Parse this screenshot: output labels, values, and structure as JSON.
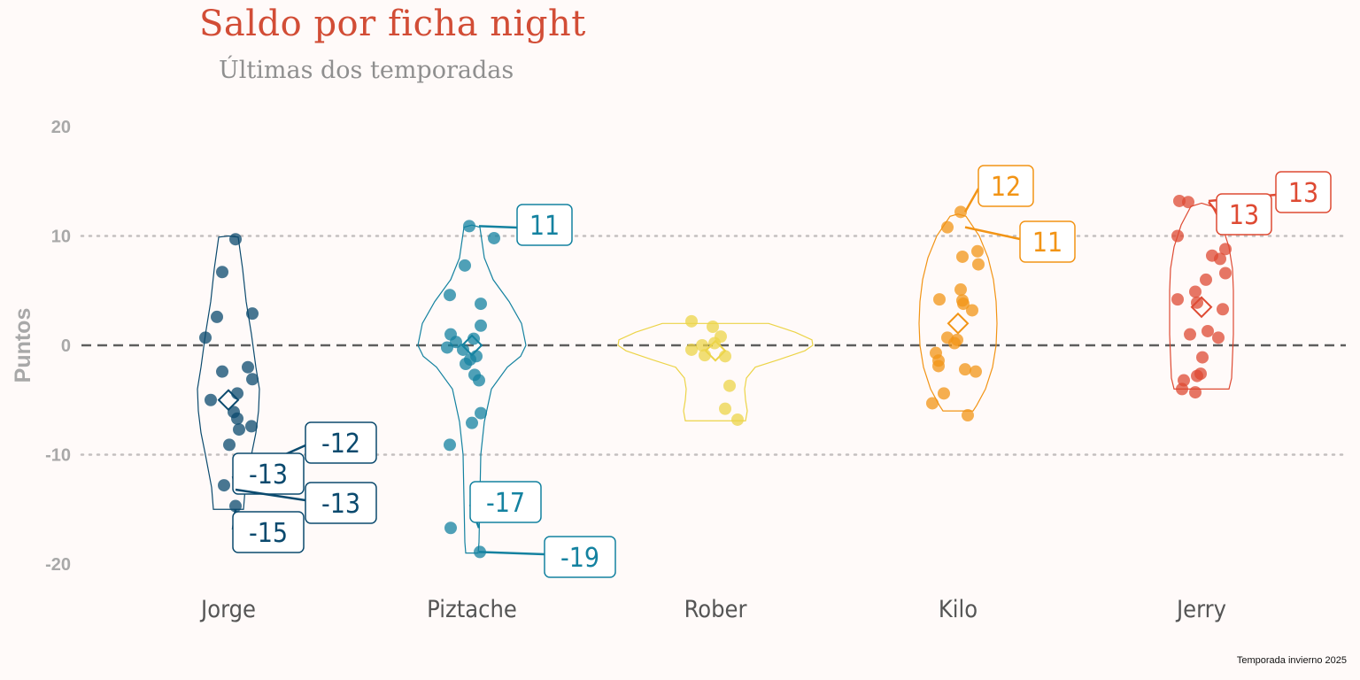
{
  "title": "Saldo por ficha night",
  "subtitle": "Últimas dos temporadas",
  "caption": "Temporada invierno 2025",
  "chart_data": {
    "type": "violin",
    "ylabel": "Puntos",
    "ylim": [
      -20,
      20
    ],
    "yticks": [
      20,
      10,
      0,
      -10,
      -20
    ],
    "reference_line": 0,
    "grid": "dotted at y=10 and y=-10",
    "categories": [
      "Jorge",
      "Piztache",
      "Rober",
      "Kilo",
      "Jerry"
    ],
    "series": [
      {
        "name": "Jorge",
        "color": "#0b4a6e",
        "mean": -5,
        "range": [
          -15,
          10
        ],
        "points": [
          9.7,
          6.7,
          2.9,
          2.6,
          0.7,
          -2.0,
          -2.4,
          -3.1,
          -4.4,
          -5.0,
          -6.1,
          -6.7,
          -7.4,
          -7.7,
          -9.1,
          -12.0,
          -12.8,
          -14.7
        ],
        "labels": [
          {
            "value": "-12",
            "y": -12.0
          },
          {
            "value": "-13",
            "y": -13.0
          },
          {
            "value": "-13",
            "y": -13.2
          },
          {
            "value": "-15",
            "y": -15.0
          }
        ]
      },
      {
        "name": "Piztache",
        "color": "#1482a0",
        "mean": 0,
        "range": [
          -19,
          11
        ],
        "points": [
          10.9,
          9.8,
          7.3,
          4.6,
          3.8,
          1.8,
          1.0,
          0.6,
          0.3,
          -0.2,
          -0.4,
          -1.0,
          -1.3,
          -1.7,
          -2.7,
          -3.2,
          -6.2,
          -7.1,
          -9.1,
          -16.7,
          -18.9
        ],
        "labels": [
          {
            "value": "11",
            "y": 10.9
          },
          {
            "value": "-17",
            "y": -16.7
          },
          {
            "value": "-19",
            "y": -18.9
          }
        ]
      },
      {
        "name": "Rober",
        "color": "#ecd448",
        "mean": -0.5,
        "range": [
          -7,
          2
        ],
        "points": [
          2.2,
          1.7,
          0.8,
          0.2,
          0.0,
          -0.4,
          -0.9,
          -1.0,
          -3.7,
          -5.8,
          -6.8
        ],
        "labels": []
      },
      {
        "name": "Kilo",
        "color": "#f29415",
        "mean": 2,
        "range": [
          -6,
          12
        ],
        "points": [
          12.2,
          10.8,
          8.6,
          8.1,
          7.4,
          5.1,
          4.2,
          4.1,
          3.8,
          3.2,
          0.7,
          0.5,
          0.2,
          -0.7,
          -1.4,
          -1.9,
          -2.2,
          -2.4,
          -4.4,
          -5.3,
          -6.4
        ],
        "labels": [
          {
            "value": "12",
            "y": 12.2
          },
          {
            "value": "11",
            "y": 10.8
          }
        ]
      },
      {
        "name": "Jerry",
        "color": "#de4a33",
        "mean": 3.5,
        "range": [
          -4,
          13
        ],
        "points": [
          13.2,
          13.1,
          10.0,
          8.8,
          8.2,
          7.9,
          6.6,
          6.0,
          4.9,
          4.2,
          3.9,
          3.3,
          1.3,
          1.0,
          0.7,
          -1.1,
          -2.6,
          -2.8,
          -3.2,
          -4.0,
          -4.3
        ],
        "labels": [
          {
            "value": "13",
            "y": 13.2
          },
          {
            "value": "13",
            "y": 13.1
          }
        ]
      }
    ]
  }
}
